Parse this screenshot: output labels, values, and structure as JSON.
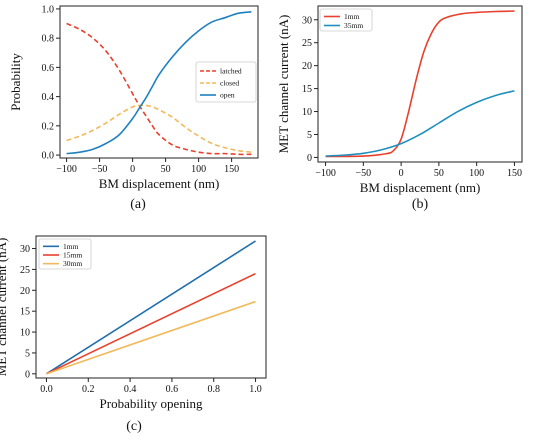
{
  "chart_data": [
    {
      "id": "a",
      "type": "line",
      "panel_label": "(a)",
      "xlabel": "BM displacement (nm)",
      "ylabel": "Probability",
      "xlim": [
        -110,
        190
      ],
      "ylim": [
        -0.02,
        1.02
      ],
      "xticks": [
        -100,
        -50,
        0,
        50,
        100,
        150
      ],
      "yticks": [
        0.0,
        0.2,
        0.4,
        0.6,
        0.8,
        1.0
      ],
      "ytick_labels": [
        "0.0",
        "0.2",
        "0.4",
        "0.6",
        "0.8",
        "1.0"
      ],
      "legend_position": "center-right",
      "series": [
        {
          "name": "latched",
          "color": "#e8412d",
          "dash": "5,3",
          "x": [
            -100,
            -80,
            -60,
            -40,
            -20,
            0,
            10,
            20,
            30,
            40,
            60,
            80,
            100,
            120,
            140,
            160,
            180
          ],
          "y": [
            0.9,
            0.86,
            0.8,
            0.71,
            0.58,
            0.42,
            0.34,
            0.27,
            0.2,
            0.14,
            0.07,
            0.04,
            0.02,
            0.01,
            0.01,
            0.005,
            0.005
          ]
        },
        {
          "name": "closed",
          "color": "#f2b95a",
          "dash": "5,3",
          "x": [
            -100,
            -80,
            -60,
            -40,
            -20,
            0,
            10,
            20,
            30,
            40,
            60,
            80,
            100,
            120,
            140,
            160,
            180
          ],
          "y": [
            0.1,
            0.13,
            0.17,
            0.22,
            0.28,
            0.33,
            0.34,
            0.34,
            0.33,
            0.31,
            0.26,
            0.19,
            0.13,
            0.08,
            0.05,
            0.03,
            0.02
          ]
        },
        {
          "name": "open",
          "color": "#1f80c0",
          "dash": "",
          "x": [
            -100,
            -80,
            -60,
            -40,
            -20,
            0,
            10,
            20,
            30,
            40,
            60,
            80,
            100,
            120,
            140,
            160,
            180
          ],
          "y": [
            0.01,
            0.02,
            0.04,
            0.08,
            0.14,
            0.25,
            0.32,
            0.39,
            0.47,
            0.55,
            0.67,
            0.77,
            0.85,
            0.91,
            0.94,
            0.97,
            0.98
          ]
        }
      ]
    },
    {
      "id": "b",
      "type": "line",
      "panel_label": "(b)",
      "xlabel": "BM displacement (nm)",
      "ylabel": "MET channel current (nA)",
      "xlim": [
        -110,
        160
      ],
      "ylim": [
        -1,
        33
      ],
      "xticks": [
        -100,
        -50,
        0,
        50,
        100,
        150
      ],
      "yticks": [
        0,
        5,
        10,
        15,
        20,
        25,
        30
      ],
      "ytick_labels": [
        "0",
        "5",
        "10",
        "15",
        "20",
        "25",
        "30"
      ],
      "legend_position": "top-left",
      "series": [
        {
          "name": "1mm",
          "color": "#e8412d",
          "dash": "",
          "x": [
            -100,
            -50,
            -20,
            -10,
            0,
            10,
            20,
            30,
            40,
            50,
            60,
            80,
            100,
            125,
            150
          ],
          "y": [
            0.2,
            0.3,
            0.8,
            1.5,
            4,
            10,
            17,
            23,
            27,
            29.5,
            30.5,
            31.3,
            31.6,
            31.8,
            31.9
          ]
        },
        {
          "name": "35mm",
          "color": "#1f8fc0",
          "dash": "",
          "x": [
            -100,
            -75,
            -50,
            -25,
            0,
            25,
            50,
            75,
            100,
            125,
            150
          ],
          "y": [
            0.3,
            0.5,
            0.9,
            1.7,
            3,
            5,
            7.5,
            10,
            12,
            13.5,
            14.5
          ]
        }
      ]
    },
    {
      "id": "c",
      "type": "line",
      "panel_label": "(c)",
      "xlabel": "Probability opening",
      "ylabel": "MET channel current (nA)",
      "xlim": [
        -0.05,
        1.05
      ],
      "ylim": [
        -1,
        33
      ],
      "xticks": [
        0.0,
        0.2,
        0.4,
        0.6,
        0.8,
        1.0
      ],
      "xtick_labels": [
        "0.0",
        "0.2",
        "0.4",
        "0.6",
        "0.8",
        "1.0"
      ],
      "yticks": [
        0,
        5,
        10,
        15,
        20,
        25,
        30
      ],
      "ytick_labels": [
        "0",
        "5",
        "10",
        "15",
        "20",
        "25",
        "30"
      ],
      "legend_position": "top-left",
      "series": [
        {
          "name": "1mm",
          "color": "#1f6fae",
          "dash": "",
          "x": [
            0,
            1
          ],
          "y": [
            0,
            31.8
          ]
        },
        {
          "name": "15mm",
          "color": "#e8412d",
          "dash": "",
          "x": [
            0,
            1
          ],
          "y": [
            0,
            24
          ]
        },
        {
          "name": "30mm",
          "color": "#f2b95a",
          "dash": "",
          "x": [
            0,
            1
          ],
          "y": [
            0,
            17.3
          ]
        }
      ]
    }
  ]
}
